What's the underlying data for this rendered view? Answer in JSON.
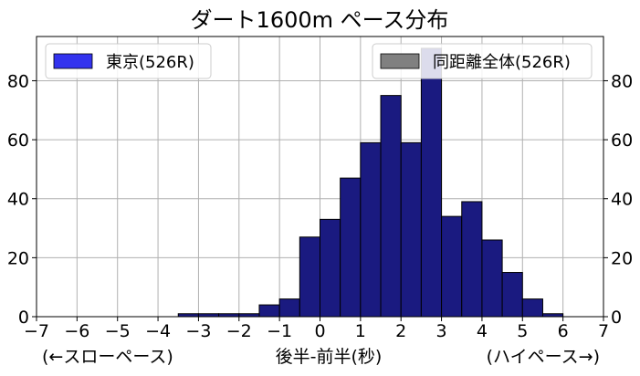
{
  "chart_data": {
    "type": "bar",
    "title": "ダート1600m ペース分布",
    "xlabel": "後半-前半(秒)",
    "xlabel_left": "(←スローペース)",
    "xlabel_right": "(ハイペース→)",
    "ylabel": "",
    "xlim": [
      -7,
      7
    ],
    "ylim": [
      0,
      95
    ],
    "xticks": [
      -7,
      -6,
      -5,
      -4,
      -3,
      -2,
      -1,
      0,
      1,
      2,
      3,
      4,
      5,
      6,
      7
    ],
    "xtick_labels": [
      "−7",
      "−6",
      "−5",
      "−4",
      "−3",
      "−2",
      "−1",
      "0",
      "1",
      "2",
      "3",
      "4",
      "5",
      "6",
      "7"
    ],
    "yticks": [
      0,
      20,
      40,
      60,
      80
    ],
    "grid": true,
    "bin_width": 0.5,
    "series": [
      {
        "name": "東京(526R)",
        "color": "#3333ee",
        "bins": [
          {
            "x0": -3.5,
            "value": 1
          },
          {
            "x0": -3.0,
            "value": 1
          },
          {
            "x0": -2.5,
            "value": 1
          },
          {
            "x0": -2.0,
            "value": 1
          },
          {
            "x0": -1.5,
            "value": 4
          },
          {
            "x0": -1.0,
            "value": 6
          },
          {
            "x0": -0.5,
            "value": 27
          },
          {
            "x0": 0.0,
            "value": 33
          },
          {
            "x0": 0.5,
            "value": 47
          },
          {
            "x0": 1.0,
            "value": 59
          },
          {
            "x0": 1.5,
            "value": 75
          },
          {
            "x0": 2.0,
            "value": 59
          },
          {
            "x0": 2.5,
            "value": 91
          },
          {
            "x0": 3.0,
            "value": 34
          },
          {
            "x0": 3.5,
            "value": 39
          },
          {
            "x0": 4.0,
            "value": 26
          },
          {
            "x0": 4.5,
            "value": 15
          },
          {
            "x0": 5.0,
            "value": 6
          },
          {
            "x0": 5.5,
            "value": 1
          }
        ]
      },
      {
        "name": "同距離全体(526R)",
        "color": "#808080",
        "bins": [
          {
            "x0": -3.5,
            "value": 1
          },
          {
            "x0": -3.0,
            "value": 1
          },
          {
            "x0": -2.5,
            "value": 1
          },
          {
            "x0": -2.0,
            "value": 1
          },
          {
            "x0": -1.5,
            "value": 4
          },
          {
            "x0": -1.0,
            "value": 6
          },
          {
            "x0": -0.5,
            "value": 27
          },
          {
            "x0": 0.0,
            "value": 33
          },
          {
            "x0": 0.5,
            "value": 47
          },
          {
            "x0": 1.0,
            "value": 59
          },
          {
            "x0": 1.5,
            "value": 75
          },
          {
            "x0": 2.0,
            "value": 59
          },
          {
            "x0": 2.5,
            "value": 91
          },
          {
            "x0": 3.0,
            "value": 34
          },
          {
            "x0": 3.5,
            "value": 39
          },
          {
            "x0": 4.0,
            "value": 26
          },
          {
            "x0": 4.5,
            "value": 15
          },
          {
            "x0": 5.0,
            "value": 6
          },
          {
            "x0": 5.5,
            "value": 1
          }
        ]
      }
    ],
    "overlap_color": "#1a1a80",
    "legend_placement": [
      "upper-left",
      "upper-right"
    ]
  }
}
